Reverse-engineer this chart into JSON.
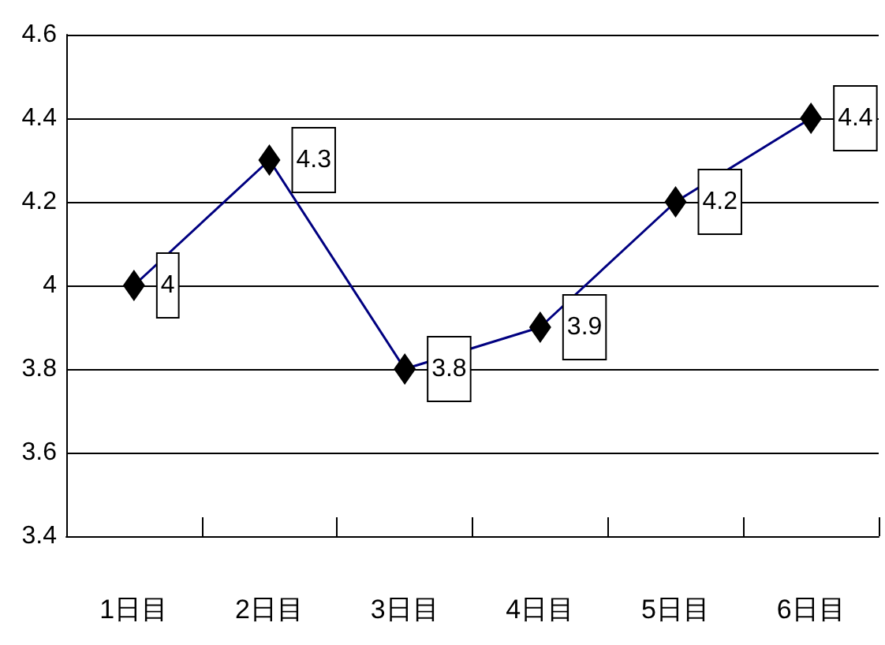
{
  "chart_data": {
    "type": "line",
    "categories": [
      "1日目",
      "2日目",
      "3日目",
      "4日目",
      "5日目",
      "6日目"
    ],
    "values": [
      4,
      4.3,
      3.8,
      3.9,
      4.2,
      4.4
    ],
    "color": "#000080",
    "marker": "diamond",
    "data_labels": true,
    "grid": "y",
    "ylim": [
      3.4,
      4.6
    ],
    "yticks": [
      3.4,
      3.6,
      3.8,
      4,
      4.2,
      4.4,
      4.6
    ]
  }
}
